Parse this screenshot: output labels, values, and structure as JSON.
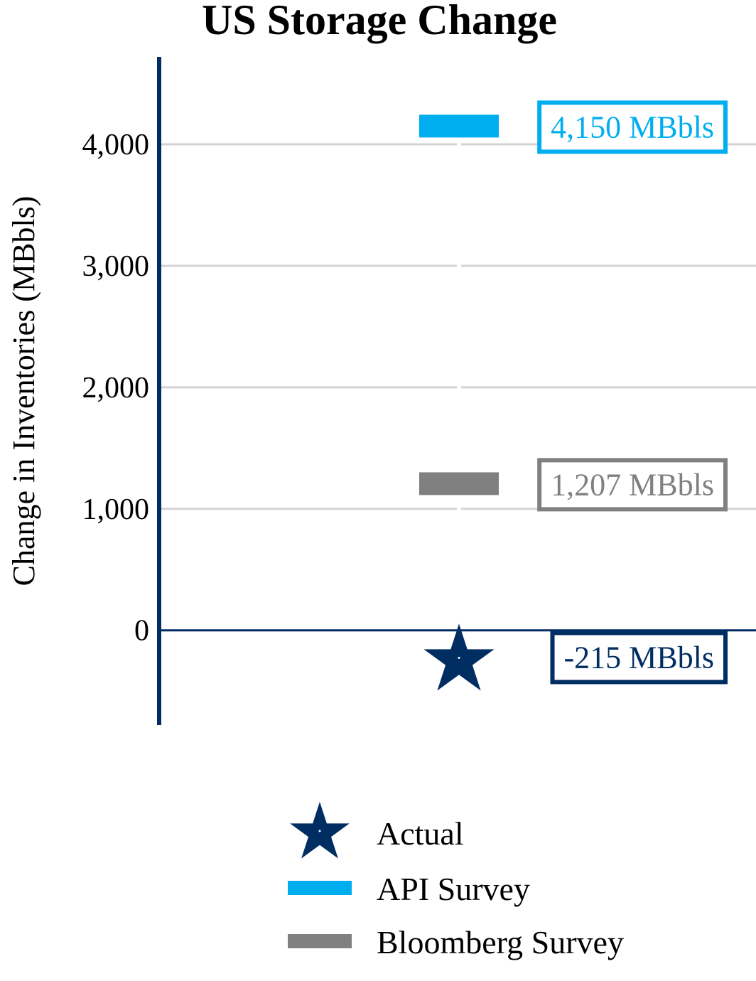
{
  "chart_data": {
    "type": "scatter",
    "title": "US Storage Change",
    "xlabel": "",
    "ylabel": "Change in Inventories (MBbls)",
    "ylim": [
      -780,
      4720
    ],
    "yticks": [
      0,
      1000,
      2000,
      3000,
      4000
    ],
    "ytick_labels": [
      "0",
      "1,000",
      "2,000",
      "3,000",
      "4,000"
    ],
    "grid": true,
    "legend_position": "bottom",
    "series": [
      {
        "name": "Actual",
        "value": -215,
        "marker": "star",
        "color": "#002d62",
        "annotation": "-215 MBbls"
      },
      {
        "name": "API Survey",
        "value": 4150,
        "marker": "bar",
        "color": "#00aeef",
        "annotation": "4,150 MBbls"
      },
      {
        "name": "Bloomberg Survey",
        "value": 1207,
        "marker": "bar",
        "color": "#808080",
        "annotation": "1,207 MBbls"
      }
    ],
    "colors": {
      "axis": "#002d62",
      "grid": "#d3d3d3"
    }
  }
}
